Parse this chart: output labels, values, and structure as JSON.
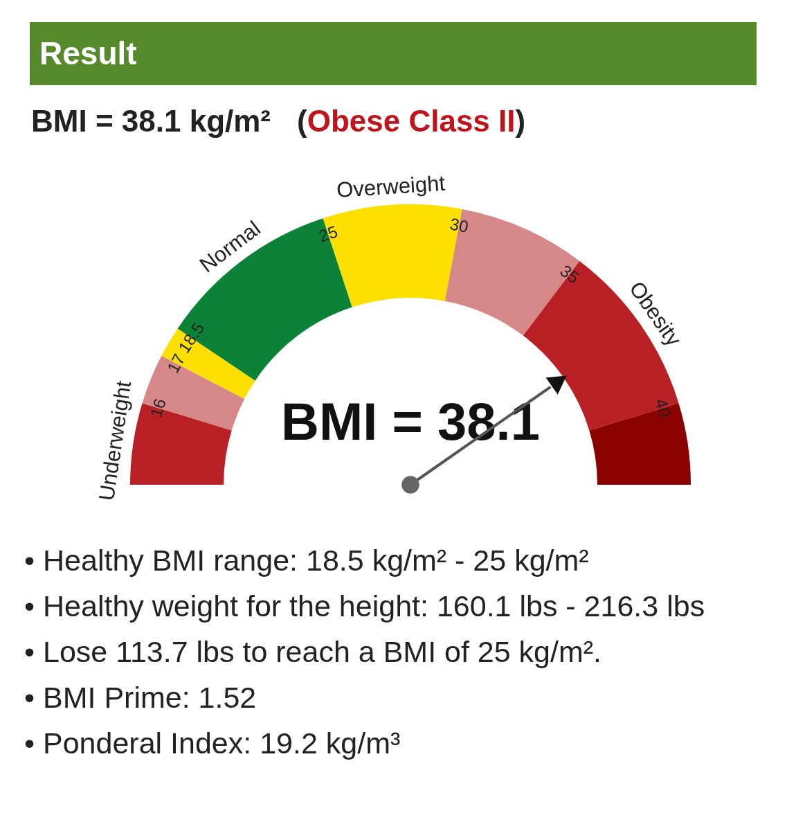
{
  "chart_data": {
    "type": "donut",
    "title": "Result",
    "subtitle": "BMI = 38.1 kg/m² (Obese Class II)",
    "categories": [
      "Underweight",
      null,
      null,
      "Normal",
      "Overweight",
      null,
      "Obesity",
      null
    ],
    "values": [
      9.4,
      5.8,
      3.6,
      21.1,
      16.0,
      14.7,
      20.0,
      9.4
    ],
    "colors": [
      "#b82025",
      "#d68787",
      "#fde000",
      "#0b8237",
      "#fde000",
      "#d68787",
      "#b82025",
      "#8b0000"
    ],
    "needle": "Obesity",
    "annotations": [
      "16",
      "17",
      "18.5",
      "25",
      "30",
      "35",
      "40",
      "BMI = 38.1",
      "• Healthy BMI range: 18.5 kg/m² - 25 kg/m²",
      "• Healthy weight for the height: 160.1 lbs - 216.3 lbs",
      "• Lose 113.7 lbs to reach a BMI of 25 kg/m².",
      "• BMI Prime: 1.52",
      "• Ponderal Index: 19.2 kg/m³"
    ]
  }
}
